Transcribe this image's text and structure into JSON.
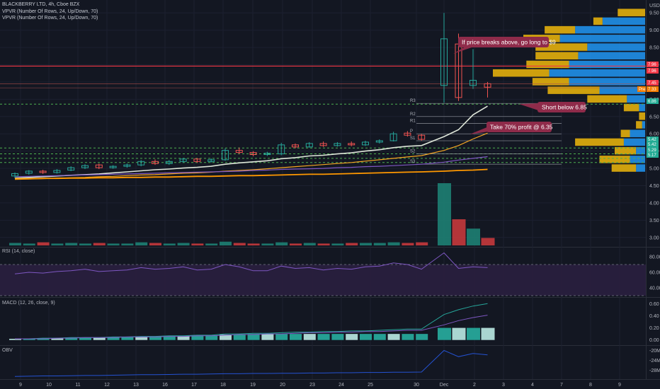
{
  "header": {
    "symbol_line": "BLACKBERRY LTD, 4h, Cboe BZX",
    "indicator_1": "VPVR (Number Of Rows, 24, Up/Down, 70)",
    "indicator_2": "VPVR (Number Of Rows, 24, Up/Down, 70)"
  },
  "price_axis": {
    "currency": "USD",
    "labels": [
      "9.50",
      "9.00",
      "8.50",
      "8.00",
      "7.50",
      "7.00",
      "6.50",
      "6.00",
      "5.50",
      "5.00",
      "4.50",
      "4.00",
      "3.50",
      "3.00"
    ]
  },
  "price_tags": [
    {
      "text": "7.96",
      "color": "#f23645"
    },
    {
      "text": "7.96",
      "color": "#f23645"
    },
    {
      "text": "7.45",
      "color": "#f23645"
    },
    {
      "text": "7.33",
      "color": "#f57c00"
    },
    {
      "text": "Pre",
      "color": "#f57c00"
    },
    {
      "text": "6.86",
      "color": "#22ab94"
    },
    {
      "text": "5.42",
      "color": "#22ab94"
    },
    {
      "text": "5.42",
      "color": "#22ab94"
    },
    {
      "text": "5.29",
      "color": "#22ab94"
    },
    {
      "text": "5.17",
      "color": "#22ab94"
    }
  ],
  "pivots": [
    "R3",
    "R2",
    "R1",
    "P",
    "S1",
    "S2",
    "S3"
  ],
  "annotations": [
    {
      "text": "If price breaks above, go long to $9"
    },
    {
      "text": "Short below 6.85"
    },
    {
      "text": "Take 70% profit @ 6.35"
    }
  ],
  "time_axis": [
    "9",
    "10",
    "11",
    "12",
    "13",
    "16",
    "17",
    "18",
    "19",
    "20",
    "23",
    "24",
    "25",
    "30",
    "Dec",
    "2",
    "3",
    "4",
    "7",
    "8",
    "9"
  ],
  "rsi": {
    "title": "RSI (14, close)",
    "labels": [
      "80.00",
      "60.00",
      "40.00"
    ]
  },
  "macd": {
    "title": "MACD (12, 26, close, 9)",
    "labels": [
      "0.60",
      "0.40",
      "0.20",
      "0.00"
    ]
  },
  "obv": {
    "title": "OBV",
    "labels": [
      "-20M",
      "-24M",
      "-28M"
    ]
  },
  "colors": {
    "background": "#131722",
    "up": "#26a69a",
    "down": "#ef5350",
    "vp_up": "#2196f3",
    "vp_down": "#f0b90b",
    "resistance": "#f23645",
    "support": "#4caf50",
    "ma_fast": "#dfe7da",
    "ma_mid": "#f6a623",
    "ma_slow": "#7e57c2",
    "ma_long": "#ff9800"
  },
  "chart_data": {
    "type": "candlestick",
    "title": "BLACKBERRY LTD, 4h, Cboe BZX",
    "ylim": [
      2.75,
      9.75
    ],
    "candles": [
      {
        "o": 4.78,
        "c": 4.85,
        "h": 4.88,
        "l": 4.72
      },
      {
        "o": 4.86,
        "c": 4.92,
        "h": 4.95,
        "l": 4.82
      },
      {
        "o": 4.92,
        "c": 4.88,
        "h": 4.96,
        "l": 4.84
      },
      {
        "o": 4.88,
        "c": 4.94,
        "h": 4.98,
        "l": 4.85
      },
      {
        "o": 4.95,
        "c": 5.02,
        "h": 5.06,
        "l": 4.92
      },
      {
        "o": 5.02,
        "c": 5.08,
        "h": 5.12,
        "l": 4.98
      },
      {
        "o": 5.1,
        "c": 5.02,
        "h": 5.14,
        "l": 4.98
      },
      {
        "o": 5.02,
        "c": 5.06,
        "h": 5.09,
        "l": 4.99
      },
      {
        "o": 5.06,
        "c": 5.1,
        "h": 5.14,
        "l": 5.02
      },
      {
        "o": 5.1,
        "c": 5.2,
        "h": 5.24,
        "l": 5.06
      },
      {
        "o": 5.2,
        "c": 5.14,
        "h": 5.26,
        "l": 5.1
      },
      {
        "o": 5.14,
        "c": 5.2,
        "h": 5.24,
        "l": 5.1
      },
      {
        "o": 5.2,
        "c": 5.27,
        "h": 5.3,
        "l": 5.16
      },
      {
        "o": 5.27,
        "c": 5.2,
        "h": 5.3,
        "l": 5.16
      },
      {
        "o": 5.2,
        "c": 5.25,
        "h": 5.29,
        "l": 5.17
      },
      {
        "o": 5.25,
        "c": 5.52,
        "h": 5.58,
        "l": 5.22
      },
      {
        "o": 5.52,
        "c": 5.46,
        "h": 5.6,
        "l": 5.42
      },
      {
        "o": 5.46,
        "c": 5.4,
        "h": 5.5,
        "l": 5.35
      },
      {
        "o": 5.4,
        "c": 5.44,
        "h": 5.48,
        "l": 5.36
      },
      {
        "o": 5.42,
        "c": 5.68,
        "h": 5.74,
        "l": 5.38
      },
      {
        "o": 5.68,
        "c": 5.62,
        "h": 5.72,
        "l": 5.58
      },
      {
        "o": 5.62,
        "c": 5.72,
        "h": 5.76,
        "l": 5.6
      },
      {
        "o": 5.72,
        "c": 5.66,
        "h": 5.78,
        "l": 5.62
      },
      {
        "o": 5.66,
        "c": 5.72,
        "h": 5.76,
        "l": 5.63
      },
      {
        "o": 5.72,
        "c": 5.68,
        "h": 5.78,
        "l": 5.64
      },
      {
        "o": 5.68,
        "c": 5.76,
        "h": 5.8,
        "l": 5.65
      },
      {
        "o": 5.76,
        "c": 5.8,
        "h": 5.84,
        "l": 5.72
      },
      {
        "o": 5.8,
        "c": 6.0,
        "h": 6.06,
        "l": 5.78
      },
      {
        "o": 6.02,
        "c": 5.96,
        "h": 6.08,
        "l": 5.92
      },
      {
        "o": 5.96,
        "c": 5.84,
        "h": 6.0,
        "l": 5.8
      },
      {
        "o": 7.4,
        "c": 8.75,
        "h": 9.5,
        "l": 6.9
      },
      {
        "o": 8.6,
        "c": 7.05,
        "h": 8.9,
        "l": 6.95
      },
      {
        "o": 7.4,
        "c": 7.55,
        "h": 8.45,
        "l": 7.3
      },
      {
        "o": 7.45,
        "c": 7.35,
        "h": 7.5,
        "l": 7.05
      }
    ],
    "volume": [
      0.04,
      0.03,
      0.05,
      0.03,
      0.04,
      0.03,
      0.04,
      0.03,
      0.03,
      0.05,
      0.04,
      0.03,
      0.04,
      0.03,
      0.03,
      0.06,
      0.04,
      0.03,
      0.03,
      0.05,
      0.03,
      0.04,
      0.03,
      0.03,
      0.04,
      0.04,
      0.04,
      0.05,
      0.04,
      0.05,
      1.0,
      0.42,
      0.27,
      0.12
    ],
    "series": [
      {
        "values": [
          4.72,
          4.74,
          4.76,
          4.78,
          4.8,
          4.82,
          4.84,
          4.87,
          4.9,
          4.93,
          4.96,
          4.98,
          5.01,
          5.03,
          5.06,
          5.12,
          5.16,
          5.19,
          5.22,
          5.28,
          5.31,
          5.36,
          5.38,
          5.42,
          5.45,
          5.5,
          5.54,
          5.6,
          5.64,
          5.66,
          5.92,
          6.12,
          6.55,
          6.8
        ]
      },
      {
        "values": [
          4.68,
          4.69,
          4.7,
          4.72,
          4.73,
          4.74,
          4.76,
          4.77,
          4.79,
          4.81,
          4.82,
          4.84,
          4.86,
          4.87,
          4.89,
          4.92,
          4.94,
          4.96,
          4.99,
          5.02,
          5.05,
          5.08,
          5.11,
          5.14,
          5.17,
          5.21,
          5.25,
          5.29,
          5.33,
          5.37,
          5.52,
          5.66,
          5.85,
          6.02
        ]
      },
      {
        "values": [
          4.76,
          4.77,
          4.78,
          4.79,
          4.8,
          4.81,
          4.82,
          4.83,
          4.84,
          4.85,
          4.86,
          4.87,
          4.88,
          4.89,
          4.9,
          4.91,
          4.92,
          4.94,
          4.95,
          4.97,
          4.98,
          4.99,
          5.0,
          5.02,
          5.03,
          5.05,
          5.06,
          5.08,
          5.1,
          5.12,
          5.18,
          5.24,
          5.29,
          5.34
        ]
      },
      {
        "values": [
          4.7,
          4.7,
          4.71,
          4.71,
          4.72,
          4.72,
          4.73,
          4.73,
          4.74,
          4.74,
          4.75,
          4.75,
          4.76,
          4.77,
          4.77,
          4.78,
          4.79,
          4.79,
          4.8,
          4.81,
          4.82,
          4.83,
          4.83,
          4.84,
          4.85,
          4.86,
          4.87,
          4.88,
          4.89,
          4.9,
          4.92,
          4.94,
          4.95,
          4.97
        ]
      }
    ],
    "pivot_levels": [
      {
        "name": "R3",
        "value": 6.88
      },
      {
        "name": "R2",
        "value": 6.5
      },
      {
        "name": "R1",
        "value": 6.3
      },
      {
        "name": "P",
        "value": 6.0
      },
      {
        "name": "S1",
        "value": 5.8
      },
      {
        "name": "S2",
        "value": 5.42
      },
      {
        "name": "S3",
        "value": 5.12
      }
    ],
    "horizontal_levels": [
      7.96,
      7.45,
      7.33,
      6.86,
      5.59,
      5.42,
      5.29,
      5.17
    ],
    "volume_profile": [
      {
        "price": 9.5,
        "up": 0.0,
        "down": 0.18
      },
      {
        "price": 9.25,
        "up": 0.28,
        "down": 0.06
      },
      {
        "price": 9.0,
        "up": 0.46,
        "down": 0.2
      },
      {
        "price": 8.75,
        "up": 0.56,
        "down": 0.24
      },
      {
        "price": 8.5,
        "up": 0.38,
        "down": 0.34
      },
      {
        "price": 8.25,
        "up": 0.44,
        "down": 0.28
      },
      {
        "price": 8.0,
        "up": 0.5,
        "down": 0.28
      },
      {
        "price": 7.75,
        "up": 0.63,
        "down": 0.37
      },
      {
        "price": 7.5,
        "up": 0.5,
        "down": 0.24
      },
      {
        "price": 7.25,
        "up": 0.3,
        "down": 0.34
      },
      {
        "price": 7.0,
        "up": 0.12,
        "down": 0.26
      },
      {
        "price": 6.75,
        "up": 0.04,
        "down": 0.1
      },
      {
        "price": 6.5,
        "up": 0.0,
        "down": 0.04
      },
      {
        "price": 6.25,
        "up": 0.02,
        "down": 0.04
      },
      {
        "price": 6.0,
        "up": 0.1,
        "down": 0.06
      },
      {
        "price": 5.75,
        "up": 0.14,
        "down": 0.32
      },
      {
        "price": 5.5,
        "up": 0.06,
        "down": 0.14
      },
      {
        "price": 5.25,
        "up": 0.1,
        "down": 0.2
      },
      {
        "price": 5.0,
        "up": 0.06,
        "down": 0.16
      }
    ],
    "rsi_values": [
      58,
      60,
      59,
      61,
      62,
      64,
      61,
      62,
      63,
      66,
      64,
      65,
      67,
      63,
      64,
      70,
      67,
      62,
      62,
      68,
      65,
      66,
      63,
      65,
      64,
      67,
      68,
      72,
      70,
      64,
      85,
      65,
      67,
      66
    ],
    "macd_line": [
      0.02,
      0.02,
      0.03,
      0.03,
      0.04,
      0.04,
      0.04,
      0.05,
      0.05,
      0.06,
      0.06,
      0.07,
      0.07,
      0.08,
      0.08,
      0.1,
      0.1,
      0.11,
      0.11,
      0.12,
      0.13,
      0.13,
      0.14,
      0.14,
      0.15,
      0.15,
      0.16,
      0.17,
      0.18,
      0.18,
      0.42,
      0.5,
      0.56,
      0.6
    ],
    "macd_signal": [
      0.02,
      0.02,
      0.02,
      0.03,
      0.03,
      0.04,
      0.04,
      0.04,
      0.05,
      0.05,
      0.05,
      0.06,
      0.06,
      0.07,
      0.07,
      0.08,
      0.09,
      0.09,
      0.1,
      0.1,
      0.11,
      0.12,
      0.12,
      0.13,
      0.13,
      0.14,
      0.14,
      0.15,
      0.16,
      0.16,
      0.25,
      0.32,
      0.37,
      0.41
    ],
    "macd_hist": [
      0.02,
      0.02,
      0.03,
      0.03,
      0.04,
      0.04,
      0.04,
      0.05,
      0.05,
      0.06,
      0.06,
      0.07,
      0.07,
      0.08,
      0.08,
      0.09,
      0.09,
      0.1,
      0.1,
      0.1,
      0.1,
      0.1,
      0.1,
      0.1,
      0.1,
      0.1,
      0.1,
      0.1,
      0.1,
      0.1,
      0.2,
      0.2,
      0.2,
      0.2
    ],
    "obv_values": [
      -30.5,
      -30.4,
      -30.3,
      -30.3,
      -30.2,
      -30.1,
      -30.1,
      -30.0,
      -29.9,
      -29.8,
      -29.8,
      -29.7,
      -29.6,
      -29.6,
      -29.5,
      -29.4,
      -29.4,
      -29.3,
      -29.3,
      -29.2,
      -29.2,
      -29.1,
      -29.1,
      -29.0,
      -29.0,
      -28.9,
      -28.9,
      -28.8,
      -28.8,
      -28.7,
      -20.0,
      -22.5,
      -21.2,
      -21.8
    ]
  }
}
